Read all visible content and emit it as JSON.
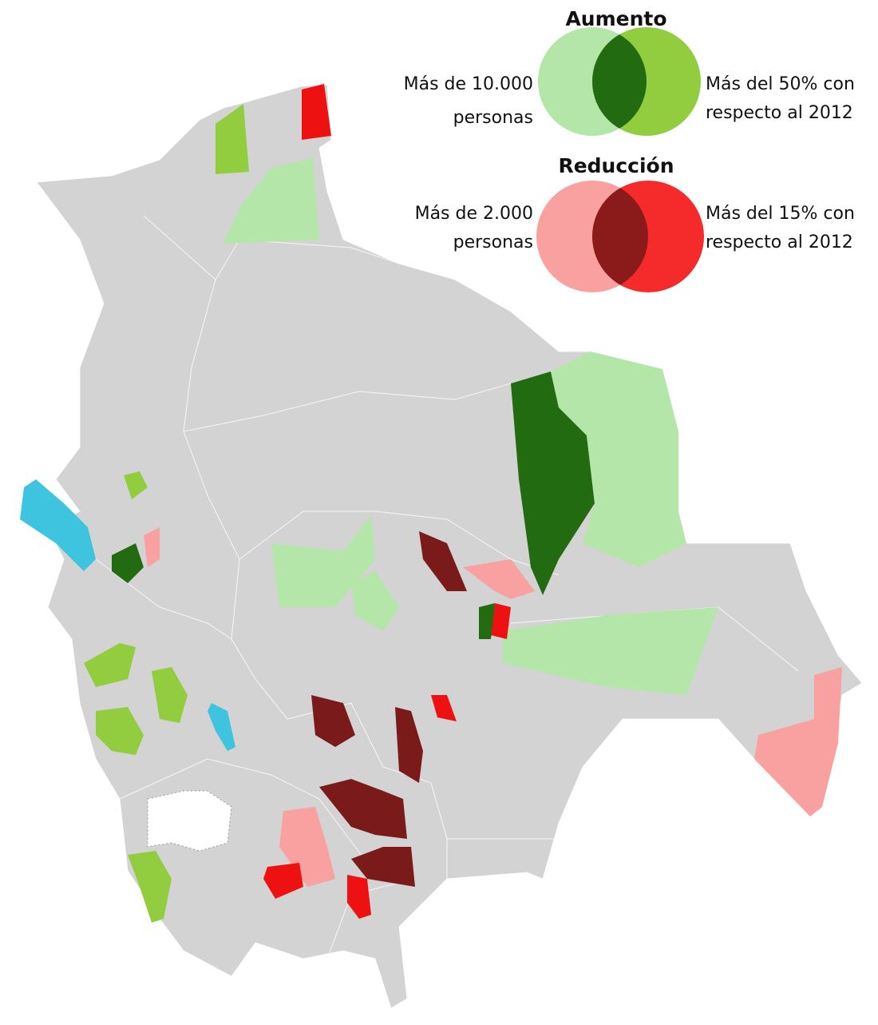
{
  "legend": {
    "increase": {
      "title": "Aumento",
      "left_label": [
        "Más de 10.000",
        "personas"
      ],
      "right_label": [
        "Más del 50% con",
        "respecto al 2012"
      ]
    },
    "decrease": {
      "title": "Reducción",
      "left_label": [
        "Más de 2.000",
        "personas"
      ],
      "right_label": [
        "Más del 15% con",
        "respecto al 2012"
      ]
    }
  }
}
